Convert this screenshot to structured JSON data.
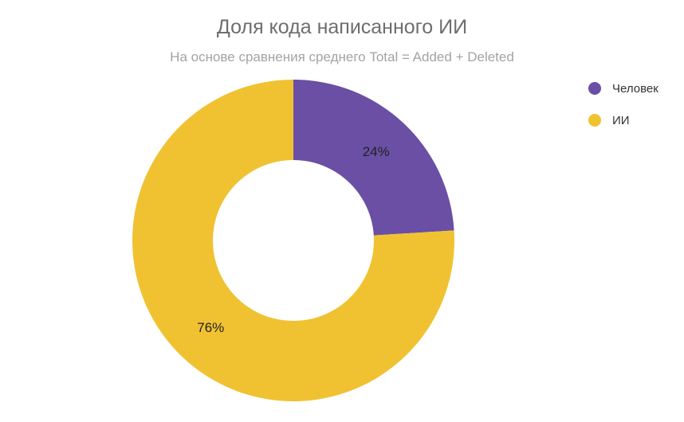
{
  "chart_data": {
    "type": "pie",
    "variant": "donut",
    "title": "Доля кода написанного ИИ",
    "subtitle": "На основе сравнения среднего Total = Added + Deleted",
    "slices": [
      {
        "name": "Человек",
        "value": 24,
        "label": "24%",
        "color": "#6a4fa5"
      },
      {
        "name": "ИИ",
        "value": 76,
        "label": "76%",
        "color": "#f0c232"
      }
    ],
    "legend": {
      "placement": "top-right"
    },
    "grid": false
  }
}
